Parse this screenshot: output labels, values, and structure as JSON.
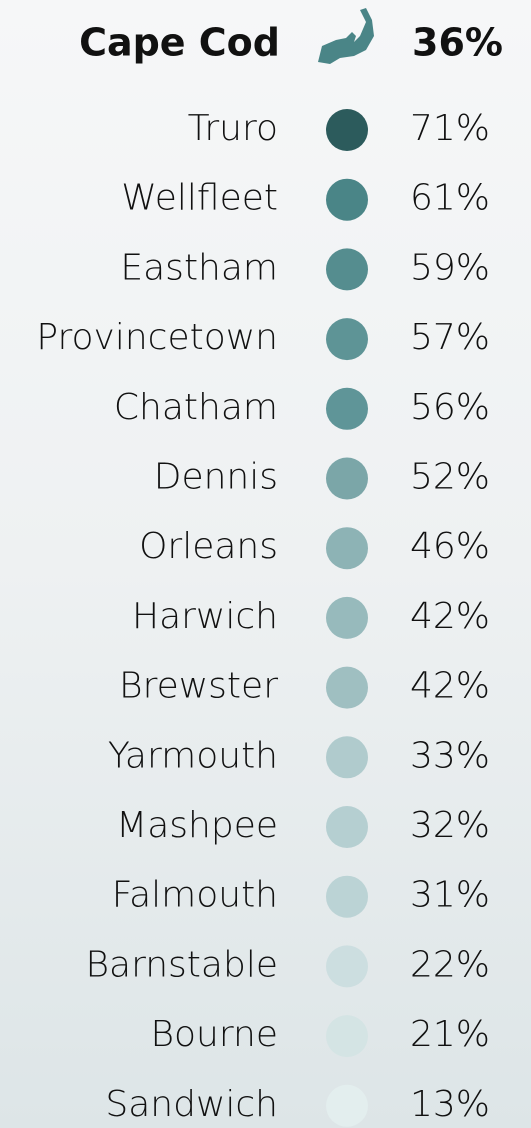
{
  "chart_data": {
    "type": "dot-list",
    "title": "Cape Cod",
    "title_value": 36,
    "title_value_label": "36%",
    "categories": [
      "Truro",
      "Wellfleet",
      "Eastham",
      "Provincetown",
      "Chatham",
      "Dennis",
      "Orleans",
      "Harwich",
      "Brewster",
      "Yarmouth",
      "Mashpee",
      "Falmouth",
      "Barnstable",
      "Bourne",
      "Sandwich"
    ],
    "values": [
      71,
      61,
      59,
      57,
      56,
      52,
      46,
      42,
      42,
      33,
      32,
      31,
      22,
      21,
      13
    ],
    "value_labels": [
      "71%",
      "61%",
      "59%",
      "57%",
      "56%",
      "52%",
      "46%",
      "42%",
      "42%",
      "33%",
      "32%",
      "31%",
      "22%",
      "21%",
      "13%"
    ],
    "colors": [
      "#2c5b5c",
      "#4a8587",
      "#558d8f",
      "#5e9496",
      "#5f9598",
      "#7ba6a8",
      "#8db3b5",
      "#97babc",
      "#9fbfc1",
      "#b0cbcd",
      "#b5cfd1",
      "#bbd3d5",
      "#ccdee0",
      "#d4e4e4",
      "#e3eeee"
    ]
  }
}
